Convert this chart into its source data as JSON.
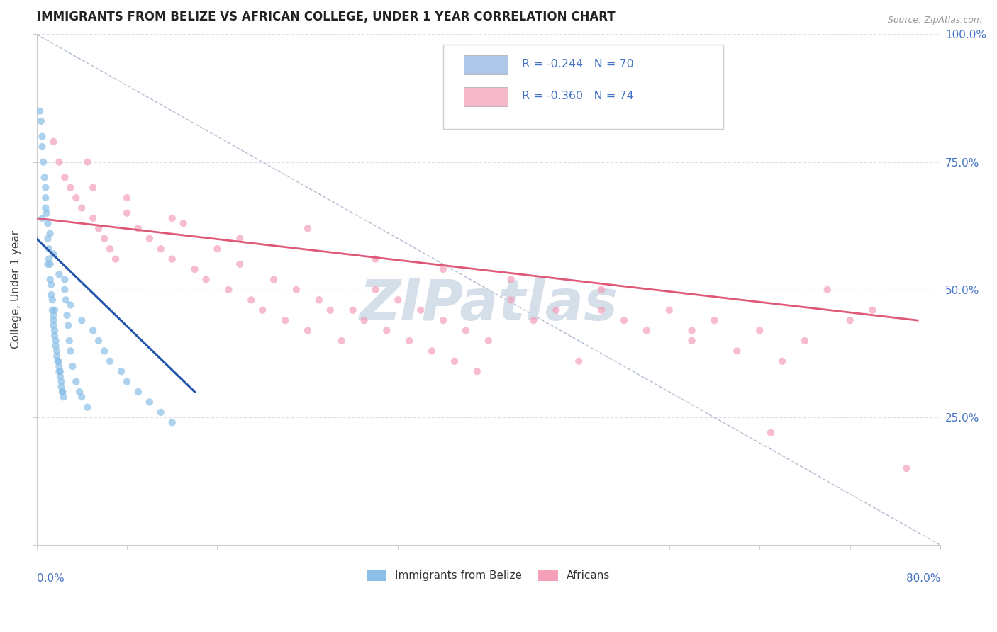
{
  "title": "IMMIGRANTS FROM BELIZE VS AFRICAN COLLEGE, UNDER 1 YEAR CORRELATION CHART",
  "source_text": "Source: ZipAtlas.com",
  "ylabel": "College, Under 1 year",
  "legend_entries": [
    {
      "label": "R = -0.244   N = 70",
      "box_color": "#aec6e8"
    },
    {
      "label": "R = -0.360   N = 74",
      "box_color": "#f4b8c8"
    }
  ],
  "legend_bottom": [
    "Immigrants from Belize",
    "Africans"
  ],
  "blue_scatter_x": [
    0.3,
    0.4,
    0.5,
    0.5,
    0.6,
    0.7,
    0.8,
    0.8,
    0.9,
    1.0,
    1.0,
    1.1,
    1.1,
    1.2,
    1.2,
    1.3,
    1.3,
    1.4,
    1.4,
    1.5,
    1.5,
    1.5,
    1.6,
    1.6,
    1.7,
    1.7,
    1.8,
    1.8,
    1.9,
    1.9,
    2.0,
    2.0,
    2.1,
    2.1,
    2.2,
    2.2,
    2.3,
    2.3,
    2.4,
    2.5,
    2.5,
    2.6,
    2.7,
    2.8,
    2.9,
    3.0,
    3.2,
    3.5,
    3.8,
    4.0,
    4.5,
    5.0,
    5.5,
    6.0,
    6.5,
    7.5,
    8.0,
    9.0,
    10.0,
    11.0,
    12.0,
    1.0,
    1.5,
    2.0,
    0.5,
    0.8,
    1.2,
    1.6,
    4.0,
    3.0
  ],
  "blue_scatter_y": [
    85,
    83,
    78,
    80,
    75,
    72,
    70,
    68,
    65,
    63,
    60,
    58,
    56,
    55,
    52,
    51,
    49,
    48,
    46,
    45,
    44,
    43,
    42,
    41,
    40,
    39,
    38,
    37,
    36,
    36,
    35,
    34,
    34,
    33,
    32,
    31,
    30,
    30,
    29,
    52,
    50,
    48,
    45,
    43,
    40,
    38,
    35,
    32,
    30,
    29,
    27,
    42,
    40,
    38,
    36,
    34,
    32,
    30,
    28,
    26,
    24,
    55,
    57,
    53,
    64,
    66,
    61,
    46,
    44,
    47
  ],
  "pink_scatter_x": [
    1.5,
    2.0,
    2.5,
    3.0,
    3.5,
    4.0,
    4.5,
    5.0,
    5.5,
    6.0,
    6.5,
    7.0,
    8.0,
    9.0,
    10.0,
    11.0,
    12.0,
    13.0,
    14.0,
    15.0,
    16.0,
    17.0,
    18.0,
    19.0,
    20.0,
    21.0,
    22.0,
    23.0,
    24.0,
    25.0,
    26.0,
    27.0,
    28.0,
    29.0,
    30.0,
    31.0,
    32.0,
    33.0,
    34.0,
    35.0,
    36.0,
    37.0,
    38.0,
    39.0,
    40.0,
    42.0,
    44.0,
    46.0,
    48.0,
    50.0,
    52.0,
    54.0,
    56.0,
    58.0,
    60.0,
    62.0,
    64.0,
    66.0,
    68.0,
    70.0,
    72.0,
    74.0,
    5.0,
    8.0,
    12.0,
    18.0,
    24.0,
    30.0,
    36.0,
    42.0,
    50.0,
    58.0,
    65.0,
    77.0
  ],
  "pink_scatter_y": [
    79,
    75,
    72,
    70,
    68,
    66,
    75,
    64,
    62,
    60,
    58,
    56,
    65,
    62,
    60,
    58,
    56,
    63,
    54,
    52,
    58,
    50,
    55,
    48,
    46,
    52,
    44,
    50,
    42,
    48,
    46,
    40,
    46,
    44,
    50,
    42,
    48,
    40,
    46,
    38,
    44,
    36,
    42,
    34,
    40,
    48,
    44,
    46,
    36,
    50,
    44,
    42,
    46,
    40,
    44,
    38,
    42,
    36,
    40,
    50,
    44,
    46,
    70,
    68,
    64,
    60,
    62,
    56,
    54,
    52,
    46,
    42,
    22,
    15
  ],
  "blue_line_x": [
    0.0,
    14.0
  ],
  "blue_line_y": [
    60,
    30
  ],
  "pink_line_x": [
    0.0,
    78.0
  ],
  "pink_line_y": [
    64,
    44
  ],
  "diag_line_x": [
    0.0,
    80.0
  ],
  "diag_line_y": [
    100,
    0
  ],
  "xlim": [
    0,
    80
  ],
  "ylim": [
    0,
    100
  ],
  "xtick_positions": [
    0,
    8,
    16,
    24,
    32,
    40,
    48,
    56,
    64,
    72,
    80
  ],
  "ytick_positions": [
    0,
    25,
    50,
    75,
    100
  ],
  "ytick_labels_right": [
    "",
    "25.0%",
    "50.0%",
    "75.0%",
    "100.0%"
  ],
  "background_color": "#ffffff",
  "scatter_alpha": 0.7,
  "scatter_size": 55,
  "blue_color": "#8bbfe8",
  "pink_color": "#f4a0b8",
  "blue_line_color": "#2255aa",
  "pink_line_color": "#e05878",
  "diag_line_color": "#b0bcd0",
  "watermark_text": "ZIPatlas",
  "watermark_color": "#d0dce8",
  "grid_color": "#e0e0e8",
  "label_color": "#4472c4",
  "title_color": "#222222",
  "source_color": "#999999"
}
